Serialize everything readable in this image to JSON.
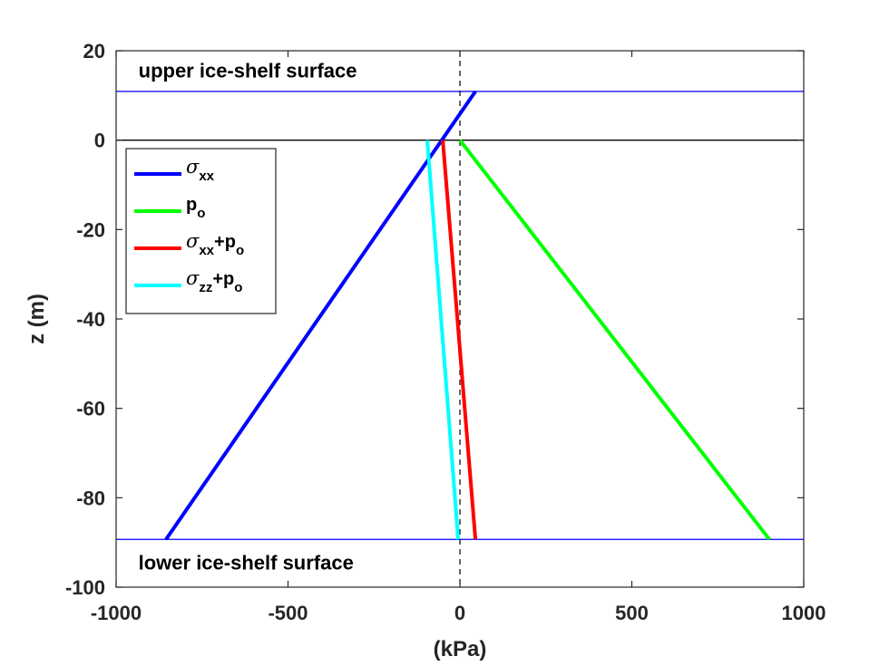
{
  "chart_data": {
    "type": "line",
    "xlabel": "(kPa)",
    "ylabel": "z (m)",
    "xlim": [
      -1000,
      1000
    ],
    "ylim": [
      -100,
      20
    ],
    "xticks": [
      -1000,
      -500,
      0,
      500,
      1000
    ],
    "xtick_labels": [
      "-1000",
      "-500",
      "0",
      "500",
      "1000"
    ],
    "yticks": [
      20,
      0,
      -20,
      -40,
      -60,
      -80,
      -100
    ],
    "ytick_labels": [
      "20",
      "0",
      "-20",
      "-40",
      "-60",
      "-80",
      "-100"
    ],
    "legend_position": "top-left",
    "series": [
      {
        "name": "σxx",
        "legend": {
          "sym": "σ",
          "sub1": "xx",
          "mid": "",
          "sub2": ""
        },
        "color": "#0000ff",
        "points": [
          [
            -855,
            -89.3
          ],
          [
            45,
            10.9
          ]
        ]
      },
      {
        "name": "po",
        "legend": {
          "sym": "",
          "sub1": "",
          "mid": "p",
          "sub2": "o"
        },
        "color": "#00ff00",
        "points": [
          [
            0,
            0
          ],
          [
            900,
            -89.3
          ]
        ]
      },
      {
        "name": "σxx+po",
        "legend": {
          "sym": "σ",
          "sub1": "xx",
          "mid": "+p",
          "sub2": "o"
        },
        "color": "#ff0000",
        "points": [
          [
            -50,
            0
          ],
          [
            45,
            -89.3
          ]
        ]
      },
      {
        "name": "σzz+po",
        "legend": {
          "sym": "σ",
          "sub1": "zz",
          "mid": "+p",
          "sub2": "o"
        },
        "color": "#00ffff",
        "points": [
          [
            -95,
            0
          ],
          [
            -5,
            -89.3
          ]
        ]
      }
    ],
    "reference_lines": [
      {
        "name": "upper-surface-line",
        "orientation": "horizontal",
        "value": 10.9,
        "color": "#0000ff"
      },
      {
        "name": "lower-surface-line",
        "orientation": "horizontal",
        "value": -89.3,
        "color": "#0000ff"
      },
      {
        "name": "zero-level-line",
        "orientation": "horizontal",
        "value": 0,
        "color": "#000000"
      },
      {
        "name": "zero-stress-dashed-line",
        "orientation": "vertical",
        "value": 0,
        "color": "#000000",
        "dashed": true
      }
    ],
    "annotations": [
      {
        "name": "upper-surface-label",
        "text": "upper ice-shelf surface",
        "x": -935,
        "y": 14
      },
      {
        "name": "lower-surface-label",
        "text": "lower ice-shelf surface",
        "x": -935,
        "y": -96
      }
    ]
  }
}
